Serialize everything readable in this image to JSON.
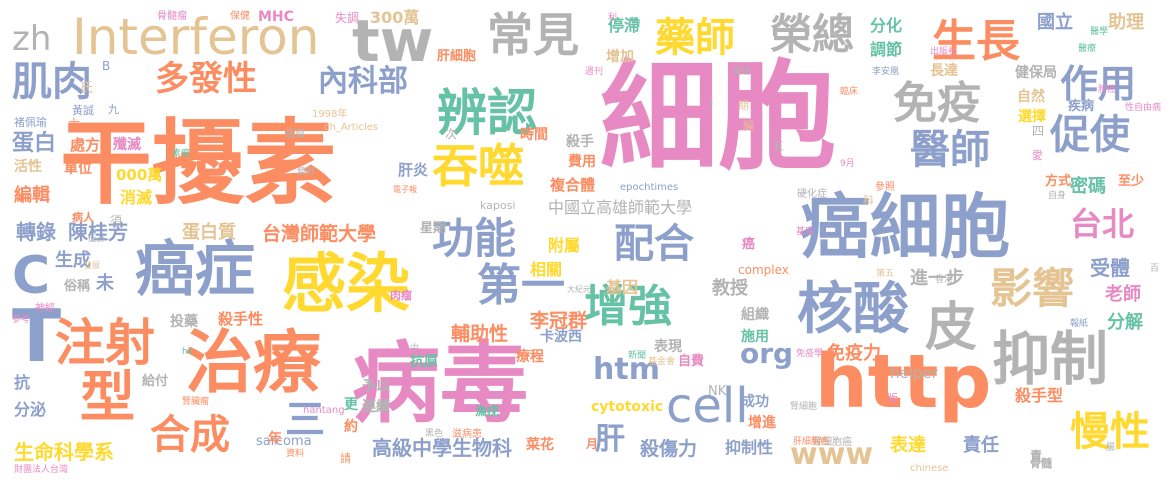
{
  "palette": {
    "pink": "#e78ac3",
    "orange": "#fc8d62",
    "blue": "#8da0cb",
    "green": "#a6d854",
    "yellow": "#ffd92f",
    "tan": "#e5c494",
    "gray": "#b3b3b3",
    "teal": "#66c2a5"
  },
  "words": [
    {
      "text": "細胞",
      "color": "pink"
    },
    {
      "text": "干擾素",
      "color": "orange"
    },
    {
      "text": "病毒",
      "color": "pink"
    },
    {
      "text": "癌細胞",
      "color": "blue"
    },
    {
      "text": "http",
      "color": "orange"
    },
    {
      "text": "治療",
      "color": "orange"
    },
    {
      "text": "感染",
      "color": "yellow"
    },
    {
      "text": "Interferon",
      "color": "tan"
    },
    {
      "text": "癌症",
      "color": "blue"
    },
    {
      "text": "抑制",
      "color": "gray"
    },
    {
      "text": "核酸",
      "color": "blue"
    },
    {
      "text": "tw",
      "color": "gray"
    },
    {
      "text": "注射",
      "color": "orange"
    },
    {
      "text": "型",
      "color": "orange"
    },
    {
      "text": "cell",
      "color": "blue"
    },
    {
      "text": "辨認",
      "color": "teal"
    },
    {
      "text": "吞噬",
      "color": "yellow"
    },
    {
      "text": "生長",
      "color": "orange"
    },
    {
      "text": "免疫",
      "color": "gray"
    },
    {
      "text": "增強",
      "color": "teal"
    },
    {
      "text": "第一",
      "color": "blue"
    },
    {
      "text": "功能",
      "color": "blue"
    },
    {
      "text": "配合",
      "color": "blue"
    },
    {
      "text": "常見",
      "color": "gray"
    },
    {
      "text": "藥師",
      "color": "yellow"
    },
    {
      "text": "榮總",
      "color": "gray"
    },
    {
      "text": "醫師",
      "color": "blue"
    },
    {
      "text": "促使",
      "color": "blue"
    },
    {
      "text": "影響",
      "color": "tan"
    },
    {
      "text": "皮",
      "color": "gray"
    },
    {
      "text": "合成",
      "color": "orange"
    },
    {
      "text": "慢性",
      "color": "yellow"
    },
    {
      "text": "肌肉",
      "color": "blue"
    },
    {
      "text": "多發性",
      "color": "orange"
    },
    {
      "text": "內科部",
      "color": "blue"
    },
    {
      "text": "作用",
      "color": "blue"
    },
    {
      "text": "台北",
      "color": "pink"
    },
    {
      "text": "zh",
      "color": "gray"
    },
    {
      "text": "C",
      "color": "blue"
    },
    {
      "text": "T",
      "color": "blue"
    },
    {
      "text": "htm",
      "color": "blue"
    },
    {
      "text": "org",
      "color": "blue"
    },
    {
      "text": "www",
      "color": "tan"
    },
    {
      "text": "三",
      "color": "blue"
    },
    {
      "text": "肝",
      "color": "blue"
    },
    {
      "text": "中國立高雄師範大學",
      "color": "gray"
    },
    {
      "text": "台灣師範大學",
      "color": "orange"
    },
    {
      "text": "蛋白質",
      "color": "tan"
    },
    {
      "text": "陳桂芳",
      "color": "blue"
    },
    {
      "text": "轉錄",
      "color": "blue"
    },
    {
      "text": "編輯",
      "color": "orange"
    },
    {
      "text": "蛋白",
      "color": "blue"
    },
    {
      "text": "處方",
      "color": "orange"
    },
    {
      "text": "生成",
      "color": "blue"
    },
    {
      "text": "未",
      "color": "blue"
    },
    {
      "text": "高級中學生物科",
      "color": "blue"
    },
    {
      "text": "生命科學系",
      "color": "yellow"
    },
    {
      "text": "殺傷力",
      "color": "blue"
    },
    {
      "text": "抑制性",
      "color": "blue"
    },
    {
      "text": "李冠群",
      "color": "orange"
    },
    {
      "text": "輔助性",
      "color": "orange"
    },
    {
      "text": "免疫力",
      "color": "orange"
    },
    {
      "text": "教授",
      "color": "gray"
    },
    {
      "text": "進一步",
      "color": "gray"
    },
    {
      "text": "受體",
      "color": "blue"
    },
    {
      "text": "老師",
      "color": "pink"
    },
    {
      "text": "分解",
      "color": "teal"
    },
    {
      "text": "責任",
      "color": "blue"
    },
    {
      "text": "表達",
      "color": "yellow"
    },
    {
      "text": "殺手型",
      "color": "orange"
    },
    {
      "text": "密碼",
      "color": "teal"
    },
    {
      "text": "停滯",
      "color": "teal"
    },
    {
      "text": "分化",
      "color": "teal"
    },
    {
      "text": "調節",
      "color": "teal"
    },
    {
      "text": "國立",
      "color": "blue"
    },
    {
      "text": "助理",
      "color": "tan"
    },
    {
      "text": "300萬",
      "color": "tan"
    },
    {
      "text": "MHC",
      "color": "pink"
    },
    {
      "text": "相關",
      "color": "yellow"
    },
    {
      "text": "附屬",
      "color": "yellow"
    },
    {
      "text": "基因",
      "color": "tan"
    },
    {
      "text": "複合體",
      "color": "orange"
    },
    {
      "text": "時間",
      "color": "orange"
    },
    {
      "text": "費用",
      "color": "orange"
    },
    {
      "text": "肝炎",
      "color": "blue"
    },
    {
      "text": "消滅",
      "color": "yellow"
    },
    {
      "text": "000萬",
      "color": "yellow"
    },
    {
      "text": "單位",
      "color": "orange"
    },
    {
      "text": "活性",
      "color": "tan"
    },
    {
      "text": "殲滅",
      "color": "pink"
    },
    {
      "text": "增加",
      "color": "tan"
    },
    {
      "text": "肝細胞",
      "color": "orange"
    },
    {
      "text": "長達",
      "color": "tan"
    },
    {
      "text": "健保局",
      "color": "gray"
    },
    {
      "text": "自然",
      "color": "tan"
    },
    {
      "text": "選擇",
      "color": "yellow"
    },
    {
      "text": "疾病",
      "color": "blue"
    },
    {
      "text": "方式",
      "color": "orange"
    },
    {
      "text": "至少",
      "color": "orange"
    },
    {
      "text": "抗原",
      "color": "teal"
    },
    {
      "text": "組織",
      "color": "gray"
    },
    {
      "text": "施用",
      "color": "teal"
    },
    {
      "text": "成功",
      "color": "blue"
    },
    {
      "text": "增進",
      "color": "orange"
    },
    {
      "text": "cytotoxic",
      "color": "yellow"
    },
    {
      "text": "complex",
      "color": "orange"
    },
    {
      "text": "helper",
      "color": "gray"
    },
    {
      "text": "kaposi",
      "color": "gray"
    },
    {
      "text": "sarcoma",
      "color": "blue"
    },
    {
      "text": "epochtimes",
      "color": "blue"
    },
    {
      "text": "抗",
      "color": "blue"
    },
    {
      "text": "分泌",
      "color": "blue"
    },
    {
      "text": "給付",
      "color": "gray"
    },
    {
      "text": "予以",
      "color": "gray"
    },
    {
      "text": "連續",
      "color": "gray"
    },
    {
      "text": "投藥",
      "color": "gray"
    },
    {
      "text": "殺手性",
      "color": "orange"
    },
    {
      "text": "表現",
      "color": "gray"
    },
    {
      "text": "卡波西",
      "color": "blue"
    },
    {
      "text": "療程",
      "color": "orange"
    },
    {
      "text": "俗稱",
      "color": "gray"
    },
    {
      "text": "病人",
      "color": "orange"
    },
    {
      "text": "星期",
      "color": "gray"
    },
    {
      "text": "殺手",
      "color": "gray"
    },
    {
      "text": "更",
      "color": "teal"
    },
    {
      "text": "約",
      "color": "orange"
    },
    {
      "text": "年",
      "color": "orange"
    },
    {
      "text": "月",
      "color": "orange"
    },
    {
      "text": "菜花",
      "color": "orange"
    },
    {
      "text": "責",
      "color": "gray"
    },
    {
      "text": "癌",
      "color": "pink"
    },
    {
      "text": "自費",
      "color": "pink"
    },
    {
      "text": "骨髓",
      "color": "gray"
    },
    {
      "text": "NK",
      "color": "gray"
    },
    {
      "text": "漁疣",
      "color": "teal"
    },
    {
      "text": "肉瘤",
      "color": "pink"
    },
    {
      "text": "骨髓瘤",
      "color": "pink"
    },
    {
      "text": "保健",
      "color": "orange"
    },
    {
      "text": "失調",
      "color": "pink"
    },
    {
      "text": "出版社",
      "color": "pink"
    },
    {
      "text": "醫療",
      "color": "teal"
    },
    {
      "text": "1998年",
      "color": "tan"
    },
    {
      "text": "ch_Articles",
      "color": "tan"
    },
    {
      "text": "褚佩瑜",
      "color": "blue"
    },
    {
      "text": "黃誠",
      "color": "blue"
    },
    {
      "text": "九",
      "color": "blue"
    },
    {
      "text": "癌瘤",
      "color": "gray"
    },
    {
      "text": "硬化症",
      "color": "gray"
    },
    {
      "text": "參照",
      "color": "orange"
    },
    {
      "text": "hantang",
      "color": "pink"
    },
    {
      "text": "chinese",
      "color": "tan"
    },
    {
      "text": "財團法人台灣",
      "color": "pink"
    },
    {
      "text": "腎細胞癌",
      "color": "gray"
    },
    {
      "text": "自身",
      "color": "gray"
    },
    {
      "text": "神經",
      "color": "pink"
    },
    {
      "text": "參考",
      "color": "pink"
    },
    {
      "text": "黑色",
      "color": "gray"
    },
    {
      "text": "腎細胞",
      "color": "gray"
    },
    {
      "text": "第五",
      "color": "tan"
    },
    {
      "text": "香港",
      "color": "gray"
    },
    {
      "text": "電子報",
      "color": "orange"
    },
    {
      "text": "圖書",
      "color": "gray"
    },
    {
      "text": "李安凰",
      "color": "blue"
    },
    {
      "text": "週刊",
      "color": "pink"
    },
    {
      "text": "新聞",
      "color": "teal"
    },
    {
      "text": "基金會",
      "color": "tan"
    },
    {
      "text": "免疫學",
      "color": "pink"
    },
    {
      "text": "報紙",
      "color": "blue"
    },
    {
      "text": "9月",
      "color": "pink"
    },
    {
      "text": "大紀元",
      "color": "gray"
    },
    {
      "text": "藝軒",
      "color": "gray"
    },
    {
      "text": "素瘤",
      "color": "teal"
    },
    {
      "text": "腎臟瘤",
      "color": "orange"
    },
    {
      "text": "資料",
      "color": "orange"
    },
    {
      "text": "滋病患",
      "color": "orange"
    },
    {
      "text": "發展",
      "color": "tan"
    },
    {
      "text": "B",
      "color": "blue"
    },
    {
      "text": "氏",
      "color": "tan"
    },
    {
      "text": "六",
      "color": "orange"
    },
    {
      "text": "次",
      "color": "gray"
    },
    {
      "text": "須",
      "color": "gray"
    },
    {
      "text": "五",
      "color": "gray"
    },
    {
      "text": "四",
      "color": "gray"
    },
    {
      "text": "百",
      "color": "gray"
    },
    {
      "text": "愛",
      "color": "pink"
    },
    {
      "text": "編",
      "color": "tan"
    },
    {
      "text": "期",
      "color": "tan"
    },
    {
      "text": "科",
      "color": "tan"
    },
    {
      "text": "版",
      "color": "pink"
    },
    {
      "text": "請",
      "color": "orange"
    },
    {
      "text": "性自由病",
      "color": "pink"
    },
    {
      "text": "膀癌",
      "color": "pink"
    },
    {
      "text": "基底",
      "color": "pink"
    },
    {
      "text": "臨床",
      "color": "orange"
    },
    {
      "text": "tccf",
      "color": "gray"
    },
    {
      "text": "中",
      "color": "gray"
    },
    {
      "text": "hk",
      "color": "teal"
    },
    {
      "text": "l",
      "color": "gray"
    },
    {
      "text": "腸",
      "color": "gray"
    },
    {
      "text": "利",
      "color": "pink"
    },
    {
      "text": "肝細胞癌",
      "color": "orange"
    },
    {
      "text": "醫學",
      "color": "teal"
    }
  ]
}
